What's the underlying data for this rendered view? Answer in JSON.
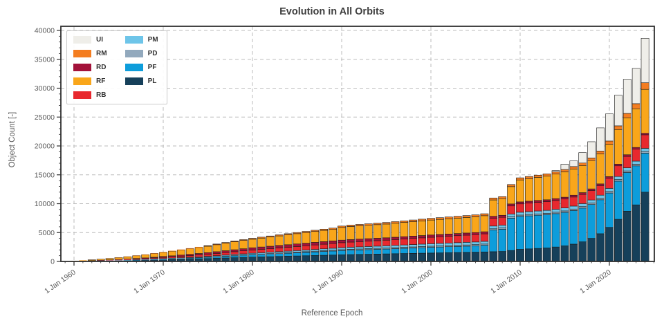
{
  "title": "Evolution in All Orbits",
  "chart_data": {
    "type": "bar",
    "stacked": true,
    "title": "Evolution in All Orbits",
    "xlabel": "Reference Epoch",
    "ylabel": "Object Count [-]",
    "ylim": [
      0,
      40000
    ],
    "ytick_step": 5000,
    "ytick_labels": [
      "0",
      "5000",
      "10000",
      "15000",
      "20000",
      "25000",
      "30000",
      "35000",
      "40000"
    ],
    "grid": true,
    "legend_position": "upper-left",
    "legend_columns": [
      [
        "UI",
        "RM",
        "RD",
        "RF",
        "RB"
      ],
      [
        "PM",
        "PD",
        "PF",
        "PL"
      ]
    ],
    "xtick_years": [
      1960,
      1970,
      1980,
      1990,
      2000,
      2010,
      2020
    ],
    "xtick_labels": [
      "1 Jan 1960",
      "1 Jan 1970",
      "1 Jan 1980",
      "1 Jan 1990",
      "1 Jan 2000",
      "1 Jan 2010",
      "1 Jan 2020"
    ],
    "years_start": 1959,
    "years_end": 2024,
    "series": [
      {
        "name": "PL",
        "color": "#16405a",
        "values": [
          10,
          20,
          35,
          55,
          75,
          95,
          120,
          150,
          185,
          220,
          260,
          300,
          340,
          380,
          420,
          460,
          500,
          550,
          600,
          650,
          700,
          750,
          790,
          830,
          870,
          910,
          950,
          990,
          1030,
          1070,
          1110,
          1150,
          1190,
          1220,
          1250,
          1280,
          1310,
          1340,
          1370,
          1400,
          1430,
          1460,
          1490,
          1520,
          1550,
          1580,
          1610,
          1650,
          1690,
          1730,
          1900,
          2100,
          2180,
          2260,
          2340,
          2500,
          2700,
          3000,
          3400,
          4000,
          4800,
          5900,
          7300,
          8700,
          9800,
          12000
        ]
      },
      {
        "name": "PF",
        "color": "#0d9ddb",
        "values": [
          2,
          5,
          10,
          16,
          22,
          28,
          36,
          45,
          55,
          65,
          80,
          95,
          110,
          125,
          145,
          170,
          200,
          235,
          270,
          310,
          350,
          390,
          420,
          450,
          480,
          510,
          540,
          580,
          620,
          660,
          700,
          740,
          760,
          780,
          800,
          820,
          840,
          870,
          900,
          930,
          960,
          990,
          1010,
          1030,
          1050,
          1070,
          1090,
          1150,
          3750,
          3850,
          5600,
          5700,
          5720,
          5740,
          5760,
          5780,
          5800,
          5820,
          5840,
          5860,
          5880,
          5950,
          6600,
          6700,
          6750,
          6750
        ]
      },
      {
        "name": "PD",
        "color": "#92a9bd",
        "values": [
          1,
          2,
          4,
          6,
          9,
          12,
          15,
          17,
          19,
          21,
          23,
          25,
          30,
          36,
          42,
          48,
          54,
          60,
          66,
          72,
          76,
          80,
          87,
          94,
          101,
          108,
          115,
          122,
          129,
          136,
          143,
          150,
          154,
          158,
          162,
          166,
          170,
          174,
          178,
          182,
          186,
          190,
          194,
          198,
          202,
          206,
          210,
          214,
          218,
          222,
          226,
          230,
          234,
          238,
          242,
          246,
          250,
          254,
          258,
          262,
          266,
          270,
          274,
          278,
          280,
          285
        ]
      },
      {
        "name": "PM",
        "color": "#6ec5e9",
        "values": [
          2,
          4,
          8,
          14,
          20,
          28,
          36,
          44,
          52,
          60,
          70,
          80,
          92,
          104,
          116,
          128,
          140,
          152,
          164,
          176,
          188,
          200,
          215,
          230,
          245,
          260,
          275,
          290,
          305,
          320,
          335,
          350,
          360,
          368,
          376,
          384,
          392,
          400,
          408,
          416,
          424,
          432,
          438,
          444,
          450,
          456,
          462,
          468,
          474,
          480,
          486,
          490,
          494,
          498,
          502,
          506,
          510,
          514,
          518,
          522,
          526,
          530,
          534,
          538,
          540,
          545
        ]
      },
      {
        "name": "RB",
        "color": "#e8282e",
        "values": [
          6,
          12,
          20,
          32,
          45,
          58,
          75,
          95,
          120,
          145,
          175,
          210,
          240,
          270,
          300,
          330,
          360,
          400,
          440,
          480,
          520,
          560,
          590,
          620,
          650,
          680,
          710,
          740,
          770,
          800,
          830,
          860,
          890,
          910,
          930,
          950,
          970,
          1000,
          1030,
          1060,
          1090,
          1120,
          1150,
          1180,
          1210,
          1240,
          1270,
          1300,
          1330,
          1360,
          1400,
          1450,
          1470,
          1490,
          1510,
          1530,
          1550,
          1570,
          1590,
          1620,
          1660,
          1750,
          1850,
          1980,
          2100,
          2350
        ]
      },
      {
        "name": "RD",
        "color": "#a3123a",
        "values": [
          4,
          8,
          15,
          24,
          35,
          45,
          60,
          75,
          90,
          105,
          125,
          145,
          165,
          190,
          215,
          240,
          265,
          290,
          315,
          340,
          365,
          390,
          400,
          410,
          420,
          430,
          440,
          445,
          450,
          450,
          445,
          440,
          435,
          430,
          425,
          420,
          415,
          410,
          405,
          400,
          395,
          390,
          385,
          380,
          375,
          370,
          365,
          360,
          355,
          350,
          345,
          340,
          335,
          330,
          325,
          320,
          315,
          310,
          305,
          300,
          295,
          290,
          285,
          280,
          270,
          265
        ]
      },
      {
        "name": "RF",
        "color": "#f9a61a",
        "values": [
          30,
          55,
          90,
          140,
          195,
          250,
          320,
          390,
          470,
          545,
          630,
          720,
          800,
          880,
          960,
          1040,
          1120,
          1210,
          1300,
          1380,
          1430,
          1480,
          1540,
          1600,
          1660,
          1720,
          1780,
          1830,
          1880,
          1930,
          1980,
          2200,
          2260,
          2290,
          2320,
          2350,
          2380,
          2420,
          2460,
          2500,
          2540,
          2580,
          2610,
          2640,
          2670,
          2700,
          2730,
          2780,
          2830,
          2880,
          3000,
          3800,
          3900,
          4000,
          4100,
          4250,
          4400,
          4550,
          4700,
          4900,
          5200,
          5600,
          6000,
          6400,
          6700,
          7600
        ]
      },
      {
        "name": "RM",
        "color": "#f47d20",
        "values": [
          5,
          9,
          13,
          18,
          24,
          30,
          38,
          44,
          50,
          56,
          62,
          70,
          78,
          86,
          94,
          102,
          110,
          120,
          130,
          140,
          150,
          160,
          168,
          176,
          184,
          192,
          200,
          208,
          216,
          224,
          232,
          240,
          248,
          254,
          260,
          266,
          272,
          278,
          284,
          290,
          296,
          302,
          308,
          314,
          320,
          326,
          332,
          338,
          344,
          350,
          360,
          370,
          376,
          382,
          388,
          394,
          400,
          410,
          430,
          460,
          500,
          560,
          640,
          760,
          880,
          1150
        ]
      },
      {
        "name": "UI",
        "color": "#efeee9",
        "values": [
          0,
          0,
          0,
          0,
          0,
          0,
          0,
          0,
          0,
          0,
          0,
          0,
          0,
          0,
          0,
          0,
          0,
          0,
          0,
          0,
          0,
          0,
          0,
          0,
          0,
          0,
          0,
          0,
          0,
          0,
          0,
          0,
          0,
          0,
          0,
          0,
          0,
          0,
          0,
          0,
          0,
          0,
          0,
          0,
          0,
          0,
          0,
          0,
          0,
          0,
          0,
          0,
          0,
          0,
          0,
          200,
          900,
          1000,
          1800,
          2800,
          4000,
          4700,
          5300,
          5900,
          6100,
          7700
        ]
      }
    ]
  },
  "style": {
    "spine_color": "#2f2f2f",
    "grid_color": "#bbbbbb",
    "tick_label_color": "#595959",
    "bar_edge_color": "#1a1a1a"
  }
}
